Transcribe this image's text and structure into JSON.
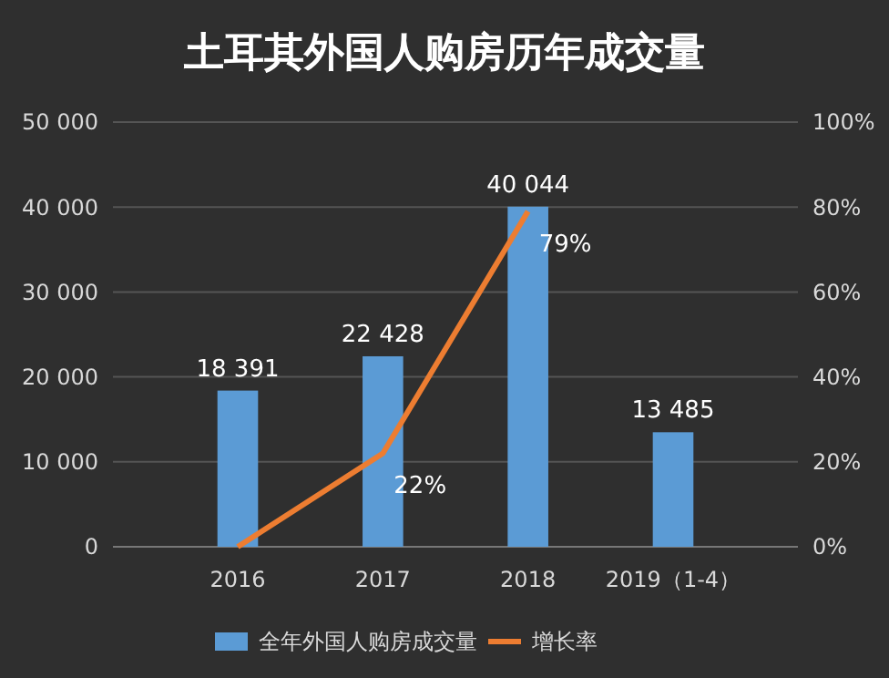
{
  "chart_data": {
    "type": "bar",
    "title": "土耳其外国人购房历年成交量",
    "categories": [
      "2016",
      "2017",
      "2018",
      "2019（1-4）"
    ],
    "series": [
      {
        "name": "全年外国人购房成交量",
        "color": "#5b9bd5",
        "values": [
          18391,
          22428,
          40044,
          13485
        ],
        "value_labels": [
          "18 391",
          "22 428",
          "40 044",
          "13 485"
        ]
      },
      {
        "name": "增长率",
        "type": "line",
        "axis": "y2",
        "color": "#ed7d31",
        "values": [
          0,
          22,
          79,
          null
        ],
        "value_labels": [
          null,
          "22%",
          "79%",
          null
        ]
      }
    ],
    "ylim": [
      0,
      50000
    ],
    "yticks": [
      0,
      {
        "value": 10000,
        "label": "10 000"
      },
      {
        "value": 20000,
        "label": "20 000"
      },
      {
        "value": 30000,
        "label": "30 000"
      },
      {
        "value": 40000,
        "label": "40 000"
      },
      {
        "value": 50000,
        "label": "50 000"
      }
    ],
    "y2lim": [
      0,
      100
    ],
    "y2ticks": [
      {
        "value": 0,
        "label": "0%"
      },
      {
        "value": 20,
        "label": "20%"
      },
      {
        "value": 40,
        "label": "40%"
      },
      {
        "value": 60,
        "label": "60%"
      },
      {
        "value": 80,
        "label": "80%"
      },
      {
        "value": 100,
        "label": "100%"
      }
    ],
    "grid": "y",
    "legend": "bottom",
    "marker": "none",
    "line_style": "solid"
  }
}
